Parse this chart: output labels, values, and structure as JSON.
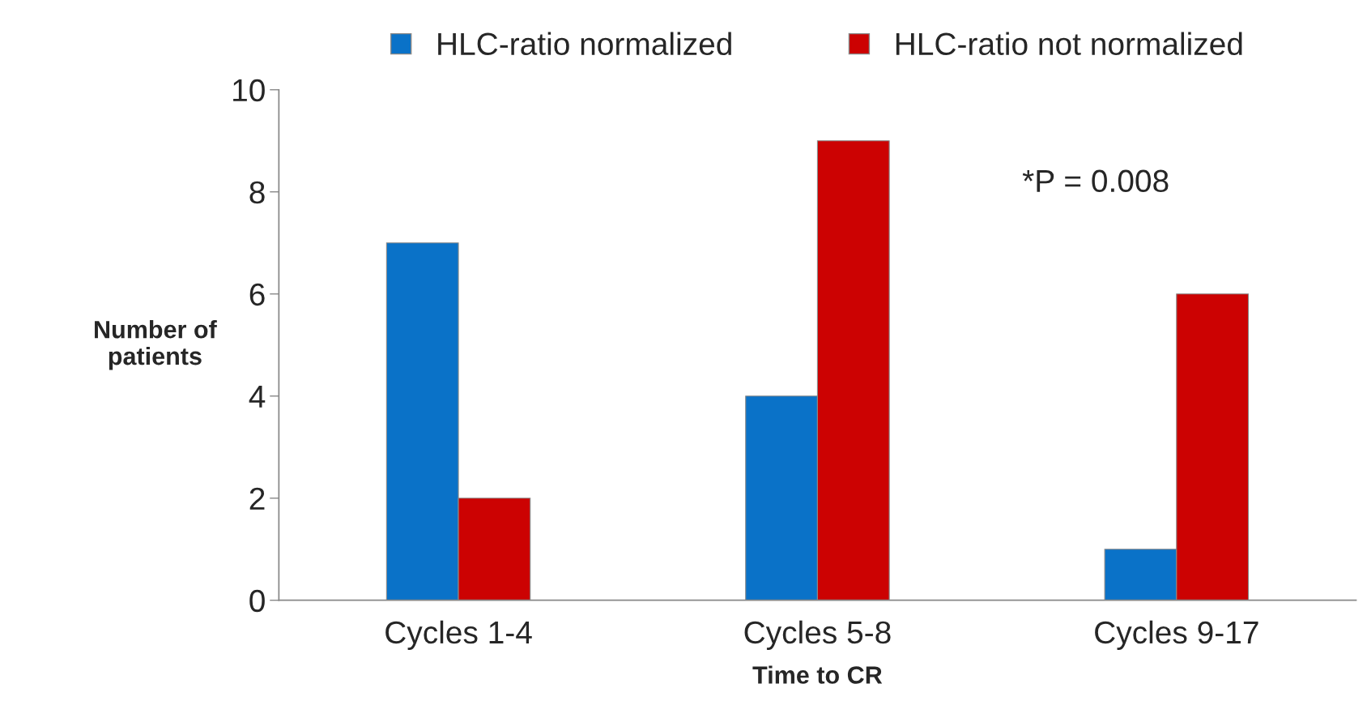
{
  "chart_data": {
    "type": "bar",
    "categories": [
      "Cycles 1-4",
      "Cycles 5-8",
      "Cycles 9-17"
    ],
    "series": [
      {
        "name": "HLC-ratio normalized",
        "color": "#0a72c8",
        "values": [
          7,
          4,
          1
        ]
      },
      {
        "name": "HLC-ratio not normalized",
        "color": "#cc0202",
        "values": [
          2,
          9,
          6
        ]
      }
    ],
    "xlabel": "Time to CR",
    "ylabel": "Number of\npatients",
    "ylim": [
      0,
      10
    ],
    "yticks": [
      0,
      2,
      4,
      6,
      8,
      10
    ],
    "annotations": [
      "*P = 0.008"
    ],
    "grid": false,
    "legend": "top"
  }
}
